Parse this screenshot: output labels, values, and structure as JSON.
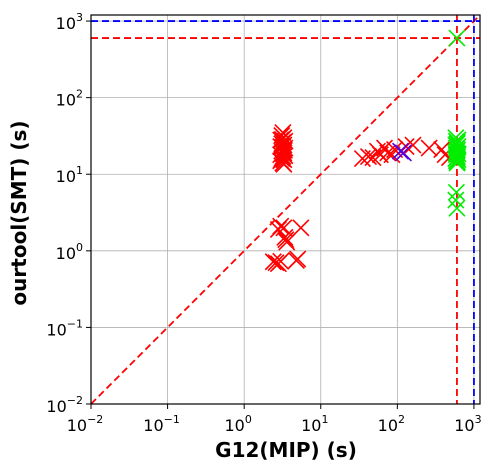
{
  "chart_data": {
    "type": "scatter",
    "title": "",
    "xlabel": "G12(MIP) (s)",
    "ylabel": "ourtool(SMT) (s)",
    "x_scale": "log",
    "y_scale": "log",
    "xlim": [
      0.01,
      1200
    ],
    "ylim": [
      0.01,
      1200
    ],
    "grid": true,
    "legend": "none",
    "x_ticks": [
      {
        "base": "10",
        "exp": "−2",
        "value": 0.01
      },
      {
        "base": "10",
        "exp": "−1",
        "value": 0.1
      },
      {
        "base": "10",
        "exp": "0",
        "value": 1
      },
      {
        "base": "10",
        "exp": "1",
        "value": 10
      },
      {
        "base": "10",
        "exp": "2",
        "value": 100
      },
      {
        "base": "10",
        "exp": "3",
        "value": 1000
      }
    ],
    "y_ticks": [
      {
        "base": "10",
        "exp": "−2",
        "value": 0.01
      },
      {
        "base": "10",
        "exp": "−1",
        "value": 0.1
      },
      {
        "base": "10",
        "exp": "0",
        "value": 1
      },
      {
        "base": "10",
        "exp": "1",
        "value": 10
      },
      {
        "base": "10",
        "exp": "2",
        "value": 100
      },
      {
        "base": "10",
        "exp": "3",
        "value": 1000
      }
    ],
    "reference_lines": [
      {
        "kind": "diagonal",
        "from": [
          0.01,
          0.01
        ],
        "to": [
          1200,
          1200
        ],
        "color": "#ff0000",
        "style": "dashed"
      },
      {
        "kind": "vertical",
        "x": 600,
        "color": "#ff0000",
        "style": "dashed"
      },
      {
        "kind": "horizontal",
        "y": 600,
        "color": "#ff0000",
        "style": "dashed"
      },
      {
        "kind": "vertical",
        "x": 1000,
        "color": "#0000ff",
        "style": "dashed"
      },
      {
        "kind": "horizontal",
        "y": 1000,
        "color": "#0000ff",
        "style": "dashed"
      }
    ],
    "series": [
      {
        "color": "#ff0000",
        "marker": "x",
        "points": [
          [
            3.2,
            35
          ],
          [
            3.1,
            32
          ],
          [
            3.3,
            30
          ],
          [
            3.0,
            28
          ],
          [
            3.4,
            27
          ],
          [
            3.2,
            26
          ],
          [
            3.1,
            25
          ],
          [
            3.3,
            24
          ],
          [
            3.0,
            23
          ],
          [
            3.4,
            22
          ],
          [
            3.2,
            21
          ],
          [
            3.1,
            20
          ],
          [
            3.3,
            19
          ],
          [
            3.0,
            18
          ],
          [
            3.4,
            17.5
          ],
          [
            3.2,
            17
          ],
          [
            3.1,
            16
          ],
          [
            3.3,
            15.5
          ],
          [
            3.0,
            15
          ],
          [
            3.2,
            14
          ],
          [
            3.3,
            13.5
          ],
          [
            3.1,
            22.5
          ],
          [
            3.25,
            18.5
          ],
          [
            3.15,
            28.5
          ],
          [
            3.35,
            20.5
          ],
          [
            3.0,
            2.1
          ],
          [
            2.8,
            1.9
          ],
          [
            3.3,
            2.0
          ],
          [
            5.5,
            2.0
          ],
          [
            3.5,
            1.4
          ],
          [
            3.6,
            1.3
          ],
          [
            3.4,
            1.5
          ],
          [
            2.4,
            0.72
          ],
          [
            2.6,
            0.7
          ],
          [
            2.8,
            0.68
          ],
          [
            3.0,
            0.73
          ],
          [
            4.8,
            0.75
          ],
          [
            5.0,
            0.78
          ],
          [
            35,
            16
          ],
          [
            42,
            17
          ],
          [
            48,
            16.5
          ],
          [
            55,
            20
          ],
          [
            60,
            18
          ],
          [
            68,
            22
          ],
          [
            75,
            19
          ],
          [
            85,
            18
          ],
          [
            92,
            21
          ],
          [
            130,
            23
          ],
          [
            160,
            24
          ],
          [
            260,
            22
          ],
          [
            380,
            21
          ],
          [
            420,
            18
          ],
          [
            480,
            16.5
          ]
        ]
      },
      {
        "color": "#5500dd",
        "marker": "x",
        "points": [
          [
            110,
            20
          ],
          [
            120,
            19
          ]
        ]
      },
      {
        "color": "#00ee00",
        "marker": "x",
        "points": [
          [
            600,
            600
          ],
          [
            580,
            30
          ],
          [
            620,
            28
          ],
          [
            590,
            27
          ],
          [
            610,
            26
          ],
          [
            600,
            25
          ],
          [
            580,
            24
          ],
          [
            620,
            23
          ],
          [
            590,
            22
          ],
          [
            610,
            21
          ],
          [
            600,
            20
          ],
          [
            580,
            19
          ],
          [
            620,
            18.5
          ],
          [
            590,
            18
          ],
          [
            610,
            17
          ],
          [
            600,
            16.5
          ],
          [
            580,
            16
          ],
          [
            620,
            15.5
          ],
          [
            590,
            15
          ],
          [
            610,
            14.5
          ],
          [
            600,
            14
          ],
          [
            590,
            5.8
          ],
          [
            580,
            4.6
          ],
          [
            600,
            3.6
          ]
        ]
      }
    ]
  }
}
